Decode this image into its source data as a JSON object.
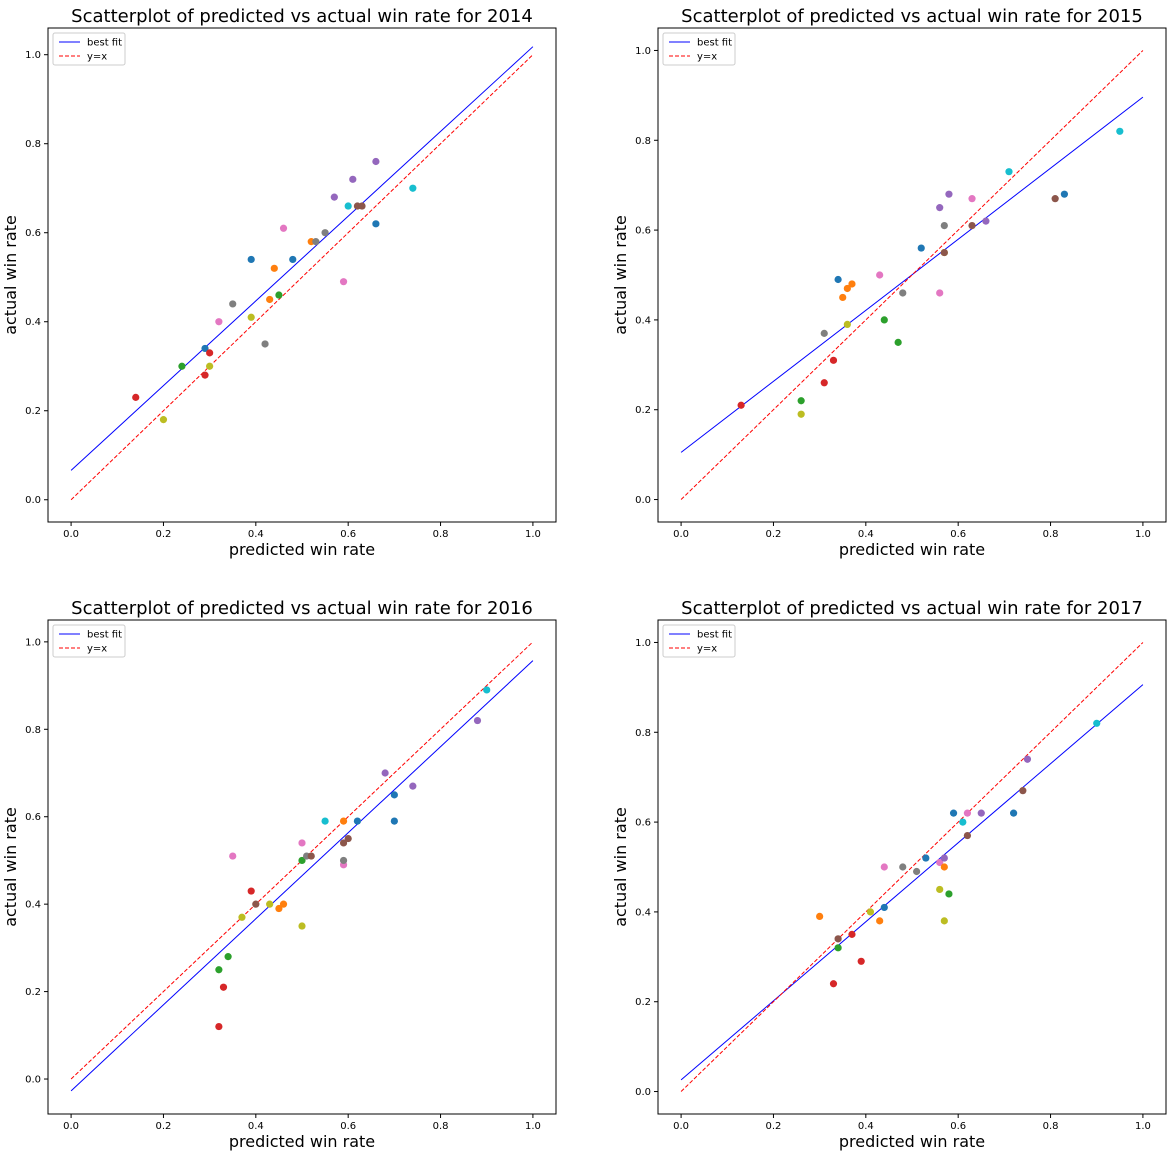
{
  "chart_data": [
    {
      "type": "scatter",
      "title": "Scatterplot of predicted vs actual win rate for 2014",
      "xlabel": "predicted win rate",
      "ylabel": "actual win rate",
      "xlim": [
        -0.05,
        1.05
      ],
      "ylim": [
        -0.05,
        1.06
      ],
      "xticks": [
        "0.0",
        "0.2",
        "0.4",
        "0.6",
        "0.8",
        "1.0"
      ],
      "yticks": [
        "0.0",
        "0.2",
        "0.4",
        "0.6",
        "0.8",
        "1.0"
      ],
      "legend": {
        "position": "upper-left",
        "entries": [
          {
            "label": "best fit",
            "color": "#0000ff",
            "style": "solid"
          },
          {
            "label": "y=x",
            "color": "#ff0000",
            "style": "dashed"
          }
        ]
      },
      "best_fit": {
        "x": [
          0,
          1
        ],
        "y": [
          0.066,
          1.018
        ]
      },
      "identity_line": {
        "x": [
          0,
          1
        ],
        "y": [
          0,
          1
        ]
      },
      "points": [
        {
          "x": 0.14,
          "y": 0.23,
          "color": "#d62728"
        },
        {
          "x": 0.2,
          "y": 0.18,
          "color": "#bcbd22"
        },
        {
          "x": 0.24,
          "y": 0.3,
          "color": "#2ca02c"
        },
        {
          "x": 0.29,
          "y": 0.34,
          "color": "#1f77b4"
        },
        {
          "x": 0.29,
          "y": 0.28,
          "color": "#d62728"
        },
        {
          "x": 0.3,
          "y": 0.3,
          "color": "#bcbd22"
        },
        {
          "x": 0.3,
          "y": 0.33,
          "color": "#d62728"
        },
        {
          "x": 0.32,
          "y": 0.4,
          "color": "#e377c2"
        },
        {
          "x": 0.35,
          "y": 0.44,
          "color": "#7f7f7f"
        },
        {
          "x": 0.39,
          "y": 0.41,
          "color": "#bcbd22"
        },
        {
          "x": 0.39,
          "y": 0.54,
          "color": "#1f77b4"
        },
        {
          "x": 0.42,
          "y": 0.35,
          "color": "#7f7f7f"
        },
        {
          "x": 0.43,
          "y": 0.45,
          "color": "#ff7f0e"
        },
        {
          "x": 0.44,
          "y": 0.52,
          "color": "#ff7f0e"
        },
        {
          "x": 0.45,
          "y": 0.46,
          "color": "#2ca02c"
        },
        {
          "x": 0.46,
          "y": 0.61,
          "color": "#e377c2"
        },
        {
          "x": 0.48,
          "y": 0.54,
          "color": "#1f77b4"
        },
        {
          "x": 0.52,
          "y": 0.58,
          "color": "#ff7f0e"
        },
        {
          "x": 0.53,
          "y": 0.58,
          "color": "#7f7f7f"
        },
        {
          "x": 0.55,
          "y": 0.6,
          "color": "#7f7f7f"
        },
        {
          "x": 0.57,
          "y": 0.68,
          "color": "#9467bd"
        },
        {
          "x": 0.59,
          "y": 0.49,
          "color": "#e377c2"
        },
        {
          "x": 0.6,
          "y": 0.66,
          "color": "#17becf"
        },
        {
          "x": 0.61,
          "y": 0.72,
          "color": "#9467bd"
        },
        {
          "x": 0.62,
          "y": 0.66,
          "color": "#8c564b"
        },
        {
          "x": 0.63,
          "y": 0.66,
          "color": "#8c564b"
        },
        {
          "x": 0.66,
          "y": 0.76,
          "color": "#9467bd"
        },
        {
          "x": 0.66,
          "y": 0.62,
          "color": "#1f77b4"
        },
        {
          "x": 0.74,
          "y": 0.7,
          "color": "#17becf"
        }
      ]
    },
    {
      "type": "scatter",
      "title": "Scatterplot of predicted vs actual win rate for 2015",
      "xlabel": "predicted win rate",
      "ylabel": "actual win rate",
      "xlim": [
        -0.05,
        1.05
      ],
      "ylim": [
        -0.05,
        1.05
      ],
      "xticks": [
        "0.0",
        "0.2",
        "0.4",
        "0.6",
        "0.8",
        "1.0"
      ],
      "yticks": [
        "0.0",
        "0.2",
        "0.4",
        "0.6",
        "0.8",
        "1.0"
      ],
      "legend": {
        "position": "upper-left",
        "entries": [
          {
            "label": "best fit",
            "color": "#0000ff",
            "style": "solid"
          },
          {
            "label": "y=x",
            "color": "#ff0000",
            "style": "dashed"
          }
        ]
      },
      "best_fit": {
        "x": [
          0,
          1
        ],
        "y": [
          0.105,
          0.896
        ]
      },
      "identity_line": {
        "x": [
          0,
          1
        ],
        "y": [
          0,
          1
        ]
      },
      "points": [
        {
          "x": 0.13,
          "y": 0.21,
          "color": "#d62728"
        },
        {
          "x": 0.26,
          "y": 0.22,
          "color": "#2ca02c"
        },
        {
          "x": 0.26,
          "y": 0.19,
          "color": "#bcbd22"
        },
        {
          "x": 0.31,
          "y": 0.26,
          "color": "#d62728"
        },
        {
          "x": 0.31,
          "y": 0.37,
          "color": "#7f7f7f"
        },
        {
          "x": 0.33,
          "y": 0.31,
          "color": "#d62728"
        },
        {
          "x": 0.34,
          "y": 0.49,
          "color": "#1f77b4"
        },
        {
          "x": 0.35,
          "y": 0.45,
          "color": "#ff7f0e"
        },
        {
          "x": 0.36,
          "y": 0.39,
          "color": "#bcbd22"
        },
        {
          "x": 0.36,
          "y": 0.47,
          "color": "#ff7f0e"
        },
        {
          "x": 0.37,
          "y": 0.48,
          "color": "#ff7f0e"
        },
        {
          "x": 0.43,
          "y": 0.5,
          "color": "#e377c2"
        },
        {
          "x": 0.44,
          "y": 0.4,
          "color": "#2ca02c"
        },
        {
          "x": 0.47,
          "y": 0.35,
          "color": "#2ca02c"
        },
        {
          "x": 0.48,
          "y": 0.46,
          "color": "#7f7f7f"
        },
        {
          "x": 0.52,
          "y": 0.56,
          "color": "#1f77b4"
        },
        {
          "x": 0.56,
          "y": 0.46,
          "color": "#e377c2"
        },
        {
          "x": 0.56,
          "y": 0.65,
          "color": "#9467bd"
        },
        {
          "x": 0.57,
          "y": 0.61,
          "color": "#7f7f7f"
        },
        {
          "x": 0.57,
          "y": 0.55,
          "color": "#bcbd22"
        },
        {
          "x": 0.57,
          "y": 0.55,
          "color": "#8c564b"
        },
        {
          "x": 0.58,
          "y": 0.68,
          "color": "#9467bd"
        },
        {
          "x": 0.63,
          "y": 0.67,
          "color": "#e377c2"
        },
        {
          "x": 0.63,
          "y": 0.61,
          "color": "#8c564b"
        },
        {
          "x": 0.66,
          "y": 0.62,
          "color": "#9467bd"
        },
        {
          "x": 0.71,
          "y": 0.73,
          "color": "#17becf"
        },
        {
          "x": 0.81,
          "y": 0.67,
          "color": "#8c564b"
        },
        {
          "x": 0.83,
          "y": 0.68,
          "color": "#1f77b4"
        },
        {
          "x": 0.95,
          "y": 0.82,
          "color": "#17becf"
        }
      ]
    },
    {
      "type": "scatter",
      "title": "Scatterplot of predicted vs actual win rate for 2016",
      "xlabel": "predicted win rate",
      "ylabel": "actual win rate",
      "xlim": [
        -0.05,
        1.05
      ],
      "ylim": [
        -0.08,
        1.05
      ],
      "xticks": [
        "0.0",
        "0.2",
        "0.4",
        "0.6",
        "0.8",
        "1.0"
      ],
      "yticks": [
        "0.0",
        "0.2",
        "0.4",
        "0.6",
        "0.8",
        "1.0"
      ],
      "legend": {
        "position": "upper-left",
        "entries": [
          {
            "label": "best fit",
            "color": "#0000ff",
            "style": "solid"
          },
          {
            "label": "y=x",
            "color": "#ff0000",
            "style": "dashed"
          }
        ]
      },
      "best_fit": {
        "x": [
          0,
          1
        ],
        "y": [
          -0.027,
          0.957
        ]
      },
      "identity_line": {
        "x": [
          0,
          1
        ],
        "y": [
          0,
          1
        ]
      },
      "points": [
        {
          "x": 0.32,
          "y": 0.12,
          "color": "#d62728"
        },
        {
          "x": 0.32,
          "y": 0.25,
          "color": "#2ca02c"
        },
        {
          "x": 0.33,
          "y": 0.21,
          "color": "#d62728"
        },
        {
          "x": 0.34,
          "y": 0.28,
          "color": "#2ca02c"
        },
        {
          "x": 0.35,
          "y": 0.51,
          "color": "#e377c2"
        },
        {
          "x": 0.37,
          "y": 0.37,
          "color": "#bcbd22"
        },
        {
          "x": 0.39,
          "y": 0.43,
          "color": "#d62728"
        },
        {
          "x": 0.4,
          "y": 0.4,
          "color": "#8c564b"
        },
        {
          "x": 0.43,
          "y": 0.4,
          "color": "#bcbd22"
        },
        {
          "x": 0.45,
          "y": 0.39,
          "color": "#ff7f0e"
        },
        {
          "x": 0.46,
          "y": 0.4,
          "color": "#ff7f0e"
        },
        {
          "x": 0.5,
          "y": 0.5,
          "color": "#2ca02c"
        },
        {
          "x": 0.5,
          "y": 0.35,
          "color": "#bcbd22"
        },
        {
          "x": 0.5,
          "y": 0.54,
          "color": "#e377c2"
        },
        {
          "x": 0.51,
          "y": 0.51,
          "color": "#7f7f7f"
        },
        {
          "x": 0.52,
          "y": 0.51,
          "color": "#8c564b"
        },
        {
          "x": 0.55,
          "y": 0.59,
          "color": "#17becf"
        },
        {
          "x": 0.59,
          "y": 0.49,
          "color": "#e377c2"
        },
        {
          "x": 0.59,
          "y": 0.59,
          "color": "#ff7f0e"
        },
        {
          "x": 0.59,
          "y": 0.54,
          "color": "#8c564b"
        },
        {
          "x": 0.59,
          "y": 0.5,
          "color": "#7f7f7f"
        },
        {
          "x": 0.6,
          "y": 0.55,
          "color": "#8c564b"
        },
        {
          "x": 0.62,
          "y": 0.59,
          "color": "#1f77b4"
        },
        {
          "x": 0.68,
          "y": 0.7,
          "color": "#9467bd"
        },
        {
          "x": 0.7,
          "y": 0.59,
          "color": "#1f77b4"
        },
        {
          "x": 0.7,
          "y": 0.65,
          "color": "#1f77b4"
        },
        {
          "x": 0.74,
          "y": 0.67,
          "color": "#9467bd"
        },
        {
          "x": 0.88,
          "y": 0.82,
          "color": "#9467bd"
        },
        {
          "x": 0.9,
          "y": 0.89,
          "color": "#17becf"
        }
      ]
    },
    {
      "type": "scatter",
      "title": "Scatterplot of predicted vs actual win rate for 2017",
      "xlabel": "predicted win rate",
      "ylabel": "actual win rate",
      "xlim": [
        -0.05,
        1.05
      ],
      "ylim": [
        -0.05,
        1.05
      ],
      "xticks": [
        "0.0",
        "0.2",
        "0.4",
        "0.6",
        "0.8",
        "1.0"
      ],
      "yticks": [
        "0.0",
        "0.2",
        "0.4",
        "0.6",
        "0.8",
        "1.0"
      ],
      "legend": {
        "position": "upper-left",
        "entries": [
          {
            "label": "best fit",
            "color": "#0000ff",
            "style": "solid"
          },
          {
            "label": "y=x",
            "color": "#ff0000",
            "style": "dashed"
          }
        ]
      },
      "best_fit": {
        "x": [
          0,
          1
        ],
        "y": [
          0.026,
          0.906
        ]
      },
      "identity_line": {
        "x": [
          0,
          1
        ],
        "y": [
          0,
          1
        ]
      },
      "points": [
        {
          "x": 0.3,
          "y": 0.39,
          "color": "#ff7f0e"
        },
        {
          "x": 0.33,
          "y": 0.24,
          "color": "#d62728"
        },
        {
          "x": 0.34,
          "y": 0.34,
          "color": "#8c564b"
        },
        {
          "x": 0.34,
          "y": 0.32,
          "color": "#2ca02c"
        },
        {
          "x": 0.37,
          "y": 0.35,
          "color": "#d62728"
        },
        {
          "x": 0.39,
          "y": 0.29,
          "color": "#d62728"
        },
        {
          "x": 0.41,
          "y": 0.4,
          "color": "#bcbd22"
        },
        {
          "x": 0.43,
          "y": 0.38,
          "color": "#ff7f0e"
        },
        {
          "x": 0.44,
          "y": 0.41,
          "color": "#1f77b4"
        },
        {
          "x": 0.44,
          "y": 0.5,
          "color": "#e377c2"
        },
        {
          "x": 0.48,
          "y": 0.5,
          "color": "#7f7f7f"
        },
        {
          "x": 0.51,
          "y": 0.49,
          "color": "#7f7f7f"
        },
        {
          "x": 0.53,
          "y": 0.52,
          "color": "#1f77b4"
        },
        {
          "x": 0.56,
          "y": 0.45,
          "color": "#bcbd22"
        },
        {
          "x": 0.56,
          "y": 0.51,
          "color": "#e377c2"
        },
        {
          "x": 0.57,
          "y": 0.52,
          "color": "#9467bd"
        },
        {
          "x": 0.57,
          "y": 0.5,
          "color": "#ff7f0e"
        },
        {
          "x": 0.57,
          "y": 0.38,
          "color": "#bcbd22"
        },
        {
          "x": 0.58,
          "y": 0.44,
          "color": "#2ca02c"
        },
        {
          "x": 0.59,
          "y": 0.62,
          "color": "#1f77b4"
        },
        {
          "x": 0.61,
          "y": 0.6,
          "color": "#17becf"
        },
        {
          "x": 0.62,
          "y": 0.62,
          "color": "#e377c2"
        },
        {
          "x": 0.62,
          "y": 0.57,
          "color": "#8c564b"
        },
        {
          "x": 0.65,
          "y": 0.62,
          "color": "#9467bd"
        },
        {
          "x": 0.72,
          "y": 0.62,
          "color": "#1f77b4"
        },
        {
          "x": 0.74,
          "y": 0.67,
          "color": "#8c564b"
        },
        {
          "x": 0.75,
          "y": 0.74,
          "color": "#9467bd"
        },
        {
          "x": 0.9,
          "y": 0.82,
          "color": "#17becf"
        }
      ]
    }
  ]
}
